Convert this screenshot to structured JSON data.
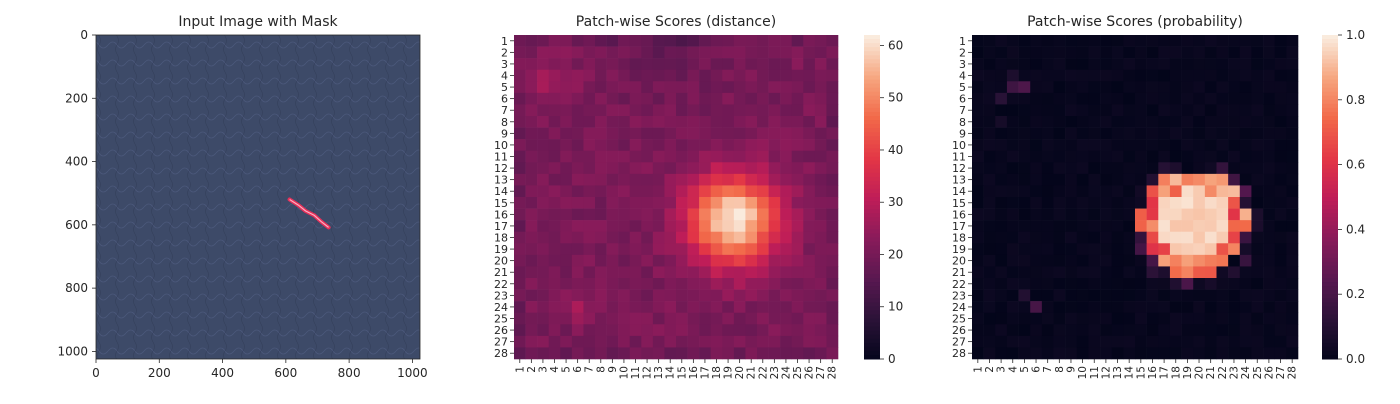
{
  "chart_data": [
    {
      "type": "image",
      "title": "Input Image with Mask",
      "x_ticks": [
        "0",
        "200",
        "400",
        "600",
        "800",
        "1000"
      ],
      "y_ticks": [
        "0",
        "200",
        "400",
        "600",
        "800",
        "1000"
      ],
      "x_tick_values": [
        0,
        200,
        400,
        600,
        800,
        1000
      ],
      "y_tick_values": [
        0,
        200,
        400,
        600,
        800,
        1000
      ],
      "extent": [
        0,
        1024
      ],
      "background_color": "#3d4a68",
      "mask_color": "#e8305a",
      "mask_polyline": [
        [
          612,
          520
        ],
        [
          640,
          538
        ],
        [
          662,
          556
        ],
        [
          690,
          570
        ],
        [
          712,
          590
        ],
        [
          735,
          608
        ]
      ]
    },
    {
      "type": "heatmap",
      "title": "Patch-wise Scores (distance)",
      "rows": 28,
      "cols": 28,
      "colormap": "rocket",
      "colorbar_ticks": [
        "0",
        "10",
        "20",
        "30",
        "40",
        "50",
        "60"
      ],
      "colorbar_values": [
        0,
        10,
        20,
        30,
        40,
        50,
        60
      ],
      "vmin": 0,
      "vmax": 62,
      "base_value": 21,
      "hotspot": {
        "row": 16.5,
        "col": 19.5,
        "peak": 62,
        "sigma": 2.7
      },
      "cold_spots": [
        {
          "row": 4.5,
          "col": 3.5,
          "value": 26,
          "sigma": 1.6
        },
        {
          "row": 24.0,
          "col": 6.0,
          "value": 27,
          "sigma": 0.8
        },
        {
          "row": 1.0,
          "col": 14.0,
          "value": 17,
          "sigma": 3.0
        }
      ],
      "x_tick_labels": [
        "1",
        "2",
        "3",
        "4",
        "5",
        "6",
        "7",
        "8",
        "9",
        "10",
        "11",
        "12",
        "13",
        "14",
        "15",
        "16",
        "17",
        "18",
        "19",
        "20",
        "21",
        "22",
        "23",
        "24",
        "25",
        "26",
        "27",
        "28"
      ],
      "y_tick_labels": [
        "1",
        "2",
        "3",
        "4",
        "5",
        "6",
        "7",
        "8",
        "9",
        "10",
        "11",
        "12",
        "13",
        "14",
        "15",
        "16",
        "17",
        "18",
        "19",
        "20",
        "21",
        "22",
        "23",
        "24",
        "25",
        "26",
        "27",
        "28"
      ]
    },
    {
      "type": "heatmap",
      "title": "Patch-wise Scores (probability)",
      "rows": 28,
      "cols": 28,
      "colormap": "rocket",
      "colorbar_ticks": [
        "0.0",
        "0.2",
        "0.4",
        "0.6",
        "0.8",
        "1.0"
      ],
      "colorbar_values": [
        0.0,
        0.2,
        0.4,
        0.6,
        0.8,
        1.0
      ],
      "vmin": 0.0,
      "vmax": 1.0,
      "hotspot": {
        "row": 16.8,
        "col": 19.5,
        "peak": 1.0,
        "radius": 4.6
      },
      "specks": [
        {
          "row": 5,
          "col": 4,
          "value": 0.18
        },
        {
          "row": 5,
          "col": 5,
          "value": 0.22
        },
        {
          "row": 6,
          "col": 3,
          "value": 0.12
        },
        {
          "row": 4,
          "col": 4,
          "value": 0.08
        },
        {
          "row": 24,
          "col": 6,
          "value": 0.2
        },
        {
          "row": 23,
          "col": 5,
          "value": 0.1
        },
        {
          "row": 8,
          "col": 3,
          "value": 0.06
        },
        {
          "row": 22,
          "col": 19,
          "value": 0.15
        }
      ],
      "x_tick_labels": [
        "1",
        "2",
        "3",
        "4",
        "5",
        "6",
        "7",
        "8",
        "9",
        "10",
        "11",
        "12",
        "13",
        "14",
        "15",
        "16",
        "17",
        "18",
        "19",
        "20",
        "21",
        "22",
        "23",
        "24",
        "25",
        "26",
        "27",
        "28"
      ],
      "y_tick_labels": [
        "1",
        "2",
        "3",
        "4",
        "5",
        "6",
        "7",
        "8",
        "9",
        "10",
        "11",
        "12",
        "13",
        "14",
        "15",
        "16",
        "17",
        "18",
        "19",
        "20",
        "21",
        "22",
        "23",
        "24",
        "25",
        "26",
        "27",
        "28"
      ]
    }
  ]
}
